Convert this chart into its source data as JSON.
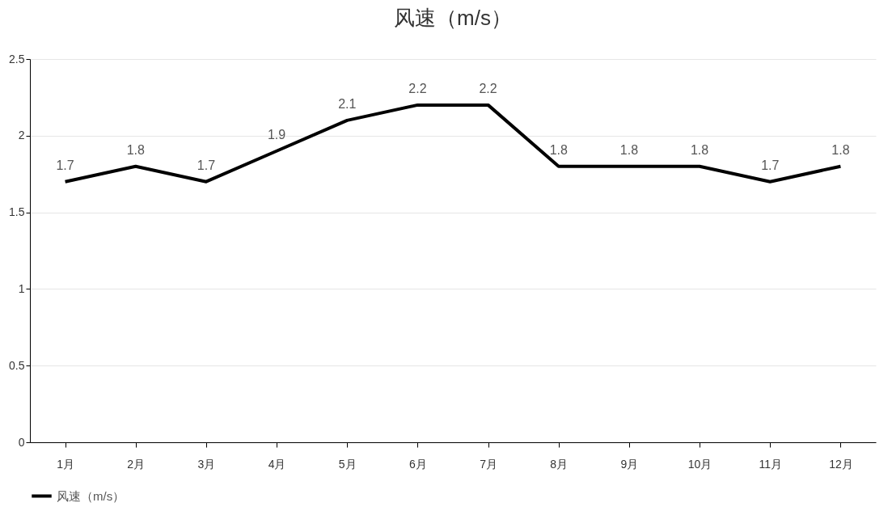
{
  "chart_data": {
    "type": "line",
    "title": "风速（m/s）",
    "categories": [
      "1月",
      "2月",
      "3月",
      "4月",
      "5月",
      "6月",
      "7月",
      "8月",
      "9月",
      "10月",
      "11月",
      "12月"
    ],
    "series": [
      {
        "name": "风速（m/s）",
        "color": "#000000",
        "values": [
          1.7,
          1.8,
          1.7,
          1.9,
          2.1,
          2.2,
          2.2,
          1.8,
          1.8,
          1.8,
          1.7,
          1.8
        ]
      }
    ],
    "ylim": [
      0,
      2.5
    ],
    "yticks": [
      0,
      0.5,
      1,
      1.5,
      2,
      2.5
    ],
    "grid": "y",
    "legend": "bottom",
    "marker": "none",
    "line_style": "solid",
    "data_labels": true
  }
}
